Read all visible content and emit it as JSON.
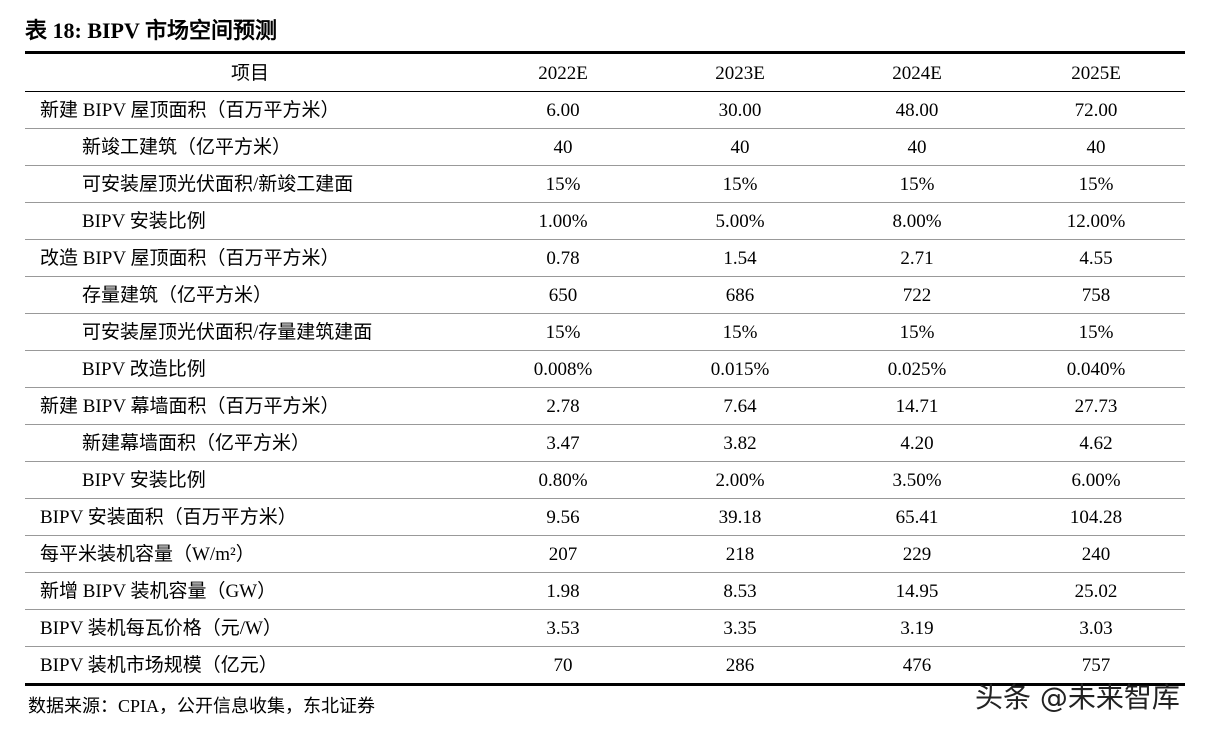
{
  "title": "表 18:  BIPV 市场空间预测",
  "table": {
    "header": [
      "项目",
      "2022E",
      "2023E",
      "2024E",
      "2025E"
    ],
    "groups": [
      {
        "label": "新建 BIPV 屋顶面积（百万平方米）",
        "values": [
          "6.00",
          "30.00",
          "48.00",
          "72.00"
        ],
        "children": [
          {
            "label": "新竣工建筑（亿平方米）",
            "values": [
              "40",
              "40",
              "40",
              "40"
            ]
          },
          {
            "label": "可安装屋顶光伏面积/新竣工建面",
            "values": [
              "15%",
              "15%",
              "15%",
              "15%"
            ]
          },
          {
            "label": "BIPV 安装比例",
            "values": [
              "1.00%",
              "5.00%",
              "8.00%",
              "12.00%"
            ]
          }
        ]
      },
      {
        "label": "改造 BIPV 屋顶面积（百万平方米）",
        "values": [
          "0.78",
          "1.54",
          "2.71",
          "4.55"
        ],
        "children": [
          {
            "label": "存量建筑（亿平方米）",
            "values": [
              "650",
              "686",
              "722",
              "758"
            ]
          },
          {
            "label": "可安装屋顶光伏面积/存量建筑建面",
            "values": [
              "15%",
              "15%",
              "15%",
              "15%"
            ]
          },
          {
            "label": "BIPV 改造比例",
            "values": [
              "0.008%",
              "0.015%",
              "0.025%",
              "0.040%"
            ]
          }
        ]
      },
      {
        "label": "新建 BIPV 幕墙面积（百万平方米）",
        "values": [
          "2.78",
          "7.64",
          "14.71",
          "27.73"
        ],
        "children": [
          {
            "label": "新建幕墙面积（亿平方米）",
            "values": [
              "3.47",
              "3.82",
              "4.20",
              "4.62"
            ]
          },
          {
            "label": "BIPV 安装比例",
            "values": [
              "0.80%",
              "2.00%",
              "3.50%",
              "6.00%"
            ]
          }
        ]
      },
      {
        "label": "BIPV 安装面积（百万平方米）",
        "values": [
          "9.56",
          "39.18",
          "65.41",
          "104.28"
        ],
        "children": []
      },
      {
        "label": "每平米装机容量（W/m²）",
        "values": [
          "207",
          "218",
          "229",
          "240"
        ],
        "children": []
      },
      {
        "label": "新增 BIPV 装机容量（GW）",
        "values": [
          "1.98",
          "8.53",
          "14.95",
          "25.02"
        ],
        "children": []
      },
      {
        "label": "BIPV 装机每瓦价格（元/W）",
        "values": [
          "3.53",
          "3.35",
          "3.19",
          "3.03"
        ],
        "children": []
      },
      {
        "label": "BIPV 装机市场规模（亿元）",
        "values": [
          "70",
          "286",
          "476",
          "757"
        ],
        "children": []
      }
    ]
  },
  "source": "数据来源：CPIA，公开信息收集，东北证券",
  "watermark": "头条 @未来智库"
}
